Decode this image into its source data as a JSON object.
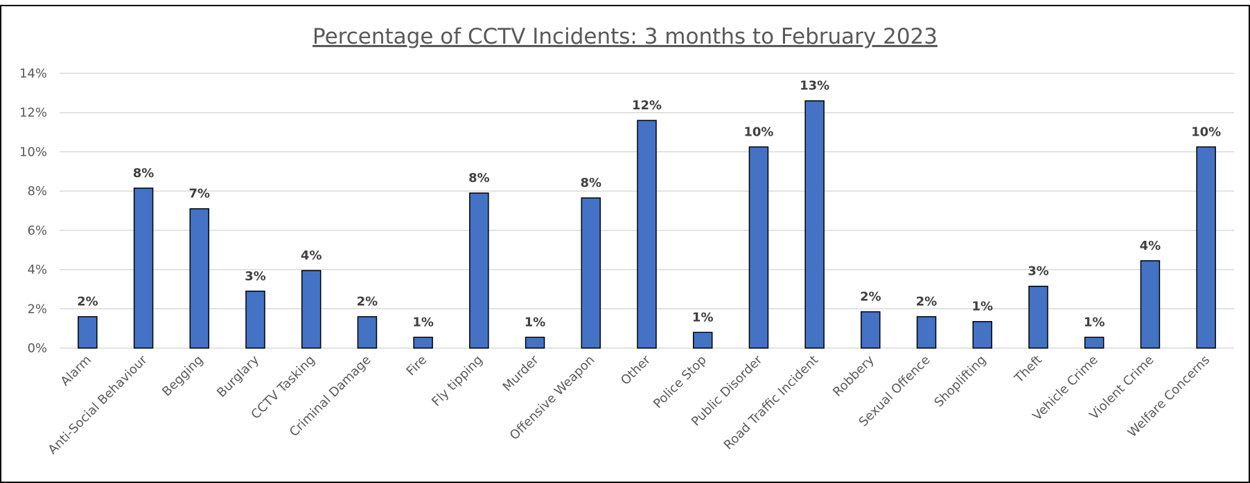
{
  "chart_data": {
    "type": "bar",
    "title": "Percentage of CCTV Incidents: 3 months to February 2023",
    "categories": [
      "Alarm",
      "Anti-Social Behaviour",
      "Begging",
      "Burglary",
      "CCTV Tasking",
      "Criminal Damage",
      "Fire",
      "Fly tipping",
      "Murder",
      "Offensive Weapon",
      "Other",
      "Police Stop",
      "Public Disorder",
      "Road Traffic Incident",
      "Robbery",
      "Sexual Offence",
      "Shoplifting",
      "Theft",
      "Vehicle Crime",
      "Violent Crime",
      "Welfare Concerns"
    ],
    "values": [
      1.6,
      8.15,
      7.1,
      2.9,
      3.95,
      1.6,
      0.55,
      7.9,
      0.55,
      7.65,
      11.6,
      0.8,
      10.25,
      12.6,
      1.85,
      1.6,
      1.35,
      3.15,
      0.55,
      4.45,
      10.25
    ],
    "value_labels": [
      "2%",
      "8%",
      "7%",
      "3%",
      "4%",
      "2%",
      "1%",
      "8%",
      "1%",
      "8%",
      "12%",
      "1%",
      "10%",
      "13%",
      "2%",
      "2%",
      "1%",
      "3%",
      "1%",
      "4%",
      "10%"
    ],
    "color": "#4472c4",
    "ylim": [
      0,
      14
    ],
    "yticks": [
      {
        "value": 0,
        "label": "0%"
      },
      {
        "value": 2,
        "label": "2%"
      },
      {
        "value": 4,
        "label": "4%"
      },
      {
        "value": 6,
        "label": "6%"
      },
      {
        "value": 8,
        "label": "8%"
      },
      {
        "value": 10,
        "label": "10%"
      },
      {
        "value": 12,
        "label": "12%"
      },
      {
        "value": 14,
        "label": "14%"
      }
    ],
    "grid": true
  }
}
